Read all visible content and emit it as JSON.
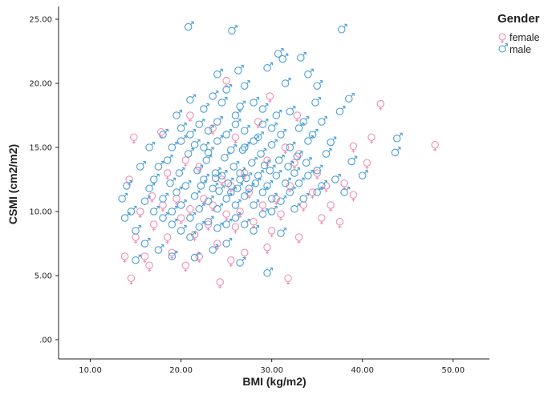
{
  "chart_data": {
    "type": "scatter",
    "xlabel": "BMI (kg/m2)",
    "ylabel": "CSMI (cm2/m2)",
    "xlim": [
      6.5,
      54
    ],
    "ylim": [
      -1.5,
      26
    ],
    "x_ticks": [
      "10.00",
      "20.00",
      "30.00",
      "40.00",
      "50.00"
    ],
    "y_ticks": [
      ".00",
      "5.00",
      "10.00",
      "15.00",
      "20.00",
      "25.00"
    ],
    "grid": false,
    "legend": {
      "title": "Gender",
      "placement": "top-right",
      "entries": [
        "female",
        "male"
      ]
    },
    "series": [
      {
        "name": "female",
        "color": "#f08db0",
        "marker": "venus-symbol",
        "points": [
          [
            14.5,
            4.8
          ],
          [
            24.3,
            4.5
          ],
          [
            31.8,
            4.8
          ],
          [
            14.8,
            15.8
          ],
          [
            17.8,
            16.2
          ],
          [
            25.0,
            20.2
          ],
          [
            29.8,
            19.0
          ],
          [
            32.8,
            17.5
          ],
          [
            42.0,
            18.4
          ],
          [
            48.0,
            15.2
          ],
          [
            40.5,
            13.8
          ],
          [
            39.0,
            15.1
          ],
          [
            41.0,
            15.8
          ],
          [
            37.5,
            9.2
          ],
          [
            39.0,
            11.3
          ],
          [
            35.0,
            13.0
          ],
          [
            36.0,
            12.0
          ],
          [
            33.0,
            8.0
          ],
          [
            29.5,
            7.2
          ],
          [
            27.0,
            6.8
          ],
          [
            25.5,
            6.2
          ],
          [
            22.0,
            6.5
          ],
          [
            19.0,
            6.8
          ],
          [
            16.0,
            6.5
          ],
          [
            15.0,
            8.0
          ],
          [
            14.3,
            12.5
          ],
          [
            13.8,
            6.5
          ],
          [
            16.5,
            5.8
          ],
          [
            20.5,
            5.8
          ],
          [
            17.0,
            9.0
          ],
          [
            18.5,
            8.0
          ],
          [
            20.0,
            9.5
          ],
          [
            21.5,
            8.2
          ],
          [
            23.0,
            9.0
          ],
          [
            24.0,
            7.5
          ],
          [
            26.0,
            8.8
          ],
          [
            28.0,
            9.2
          ],
          [
            30.0,
            8.5
          ],
          [
            31.0,
            9.8
          ],
          [
            33.5,
            10.5
          ],
          [
            34.5,
            11.5
          ],
          [
            32.0,
            12.0
          ],
          [
            30.5,
            11.0
          ],
          [
            29.0,
            10.5
          ],
          [
            27.5,
            11.5
          ],
          [
            26.5,
            10.0
          ],
          [
            25.0,
            9.8
          ],
          [
            23.5,
            10.5
          ],
          [
            22.5,
            11.0
          ],
          [
            21.0,
            10.2
          ],
          [
            19.5,
            11.0
          ],
          [
            18.0,
            10.5
          ],
          [
            16.8,
            11.2
          ],
          [
            15.5,
            10.0
          ],
          [
            24.5,
            12.5
          ],
          [
            27.0,
            13.0
          ],
          [
            22.0,
            13.5
          ],
          [
            29.5,
            14.0
          ],
          [
            31.5,
            15.0
          ],
          [
            20.5,
            14.0
          ],
          [
            18.5,
            13.0
          ],
          [
            35.5,
            9.5
          ],
          [
            36.5,
            10.5
          ],
          [
            38.0,
            12.2
          ],
          [
            26.0,
            15.8
          ],
          [
            23.5,
            16.5
          ],
          [
            28.5,
            17.0
          ],
          [
            21.0,
            17.5
          ],
          [
            33.0,
            14.5
          ],
          [
            25.5,
            12.0
          ],
          [
            32.5,
            13.8
          ]
        ]
      },
      {
        "name": "male",
        "color": "#4a9fd8",
        "marker": "mars-symbol",
        "points": [
          [
            20.8,
            24.4
          ],
          [
            25.6,
            24.1
          ],
          [
            37.7,
            24.2
          ],
          [
            30.7,
            22.3
          ],
          [
            31.2,
            21.9
          ],
          [
            33.2,
            22.0
          ],
          [
            29.5,
            21.2
          ],
          [
            26.3,
            21.0
          ],
          [
            24.0,
            20.7
          ],
          [
            34.0,
            20.7
          ],
          [
            35.0,
            19.8
          ],
          [
            31.5,
            20.0
          ],
          [
            27.0,
            19.8
          ],
          [
            25.0,
            19.5
          ],
          [
            23.5,
            19.0
          ],
          [
            21.0,
            18.7
          ],
          [
            38.5,
            18.8
          ],
          [
            34.8,
            18.5
          ],
          [
            37.5,
            17.8
          ],
          [
            30.5,
            17.5
          ],
          [
            33.5,
            17.0
          ],
          [
            29.0,
            18.0
          ],
          [
            26.5,
            18.2
          ],
          [
            22.5,
            18.0
          ],
          [
            19.5,
            17.5
          ],
          [
            18.0,
            16.0
          ],
          [
            16.5,
            15.0
          ],
          [
            15.5,
            13.5
          ],
          [
            14.0,
            12.0
          ],
          [
            13.5,
            11.0
          ],
          [
            14.5,
            10.0
          ],
          [
            13.8,
            9.5
          ],
          [
            15.0,
            8.5
          ],
          [
            16.0,
            7.5
          ],
          [
            15.0,
            6.2
          ],
          [
            17.5,
            7.0
          ],
          [
            19.0,
            6.5
          ],
          [
            21.5,
            6.4
          ],
          [
            23.5,
            7.0
          ],
          [
            25.0,
            7.5
          ],
          [
            26.5,
            6.0
          ],
          [
            29.5,
            5.2
          ],
          [
            31.0,
            8.3
          ],
          [
            32.5,
            10.2
          ],
          [
            33.5,
            11.0
          ],
          [
            35.5,
            12.0
          ],
          [
            36.5,
            15.4
          ],
          [
            37.0,
            12.5
          ],
          [
            38.0,
            11.5
          ],
          [
            38.8,
            13.9
          ],
          [
            40.0,
            12.8
          ],
          [
            43.8,
            15.7
          ],
          [
            43.6,
            14.6
          ],
          [
            35.0,
            13.2
          ],
          [
            36.0,
            14.5
          ],
          [
            34.0,
            15.5
          ],
          [
            33.0,
            16.5
          ],
          [
            32.0,
            15.0
          ],
          [
            31.0,
            16.0
          ],
          [
            30.0,
            15.2
          ],
          [
            29.0,
            16.8
          ],
          [
            28.0,
            15.5
          ],
          [
            27.0,
            16.3
          ],
          [
            26.0,
            16.8
          ],
          [
            25.0,
            16.0
          ],
          [
            24.0,
            17.0
          ],
          [
            23.0,
            16.3
          ],
          [
            22.0,
            16.8
          ],
          [
            21.0,
            16.0
          ],
          [
            20.0,
            15.5
          ],
          [
            19.0,
            15.0
          ],
          [
            18.5,
            14.0
          ],
          [
            17.5,
            13.5
          ],
          [
            17.0,
            12.5
          ],
          [
            16.5,
            11.8
          ],
          [
            16.0,
            10.8
          ],
          [
            17.0,
            10.0
          ],
          [
            18.0,
            9.5
          ],
          [
            19.0,
            9.0
          ],
          [
            20.0,
            8.5
          ],
          [
            21.0,
            8.0
          ],
          [
            22.0,
            8.8
          ],
          [
            23.0,
            9.2
          ],
          [
            24.0,
            8.7
          ],
          [
            25.0,
            9.0
          ],
          [
            26.0,
            9.5
          ],
          [
            27.0,
            9.0
          ],
          [
            28.0,
            8.5
          ],
          [
            29.0,
            9.8
          ],
          [
            30.0,
            10.0
          ],
          [
            31.0,
            10.8
          ],
          [
            32.0,
            11.5
          ],
          [
            33.0,
            12.2
          ],
          [
            34.0,
            12.8
          ],
          [
            35.0,
            11.5
          ],
          [
            33.8,
            13.8
          ],
          [
            32.8,
            14.3
          ],
          [
            31.8,
            13.5
          ],
          [
            30.8,
            14.0
          ],
          [
            29.8,
            13.2
          ],
          [
            28.8,
            14.5
          ],
          [
            27.8,
            13.8
          ],
          [
            26.8,
            14.8
          ],
          [
            25.8,
            13.5
          ],
          [
            24.8,
            14.2
          ],
          [
            23.8,
            13.0
          ],
          [
            22.8,
            14.0
          ],
          [
            21.8,
            13.2
          ],
          [
            20.8,
            14.5
          ],
          [
            19.8,
            13.0
          ],
          [
            18.8,
            12.2
          ],
          [
            19.5,
            11.5
          ],
          [
            20.5,
            12.0
          ],
          [
            21.5,
            11.2
          ],
          [
            22.5,
            12.5
          ],
          [
            23.5,
            11.8
          ],
          [
            24.5,
            12.8
          ],
          [
            25.5,
            11.5
          ],
          [
            26.5,
            12.5
          ],
          [
            27.5,
            11.8
          ],
          [
            28.5,
            12.8
          ],
          [
            29.5,
            12.0
          ],
          [
            30.5,
            12.8
          ],
          [
            31.5,
            12.2
          ],
          [
            32.5,
            13.0
          ],
          [
            22.0,
            10.2
          ],
          [
            23.0,
            10.8
          ],
          [
            24.0,
            10.2
          ],
          [
            25.0,
            11.0
          ],
          [
            26.0,
            10.5
          ],
          [
            27.0,
            11.2
          ],
          [
            28.0,
            10.5
          ],
          [
            29.0,
            11.5
          ],
          [
            30.0,
            11.0
          ],
          [
            21.0,
            9.5
          ],
          [
            20.0,
            10.5
          ],
          [
            19.0,
            10.0
          ],
          [
            18.0,
            11.0
          ],
          [
            22.5,
            15.0
          ],
          [
            24.0,
            15.5
          ],
          [
            25.5,
            14.8
          ],
          [
            27.0,
            15.0
          ],
          [
            28.5,
            15.8
          ],
          [
            30.0,
            16.5
          ],
          [
            26.0,
            17.5
          ],
          [
            24.5,
            18.5
          ],
          [
            28.0,
            18.5
          ],
          [
            32.0,
            17.8
          ],
          [
            35.5,
            17.0
          ],
          [
            34.5,
            16.0
          ],
          [
            20.0,
            16.5
          ],
          [
            21.5,
            15.2
          ],
          [
            23.0,
            14.6
          ],
          [
            26.5,
            13.0
          ],
          [
            24.2,
            11.6
          ],
          [
            22.2,
            12.0
          ],
          [
            25.2,
            12.2
          ],
          [
            27.2,
            12.6
          ],
          [
            29.2,
            13.6
          ],
          [
            23.8,
            12.6
          ],
          [
            26.2,
            11.8
          ],
          [
            28.2,
            12.2
          ]
        ]
      }
    ]
  }
}
